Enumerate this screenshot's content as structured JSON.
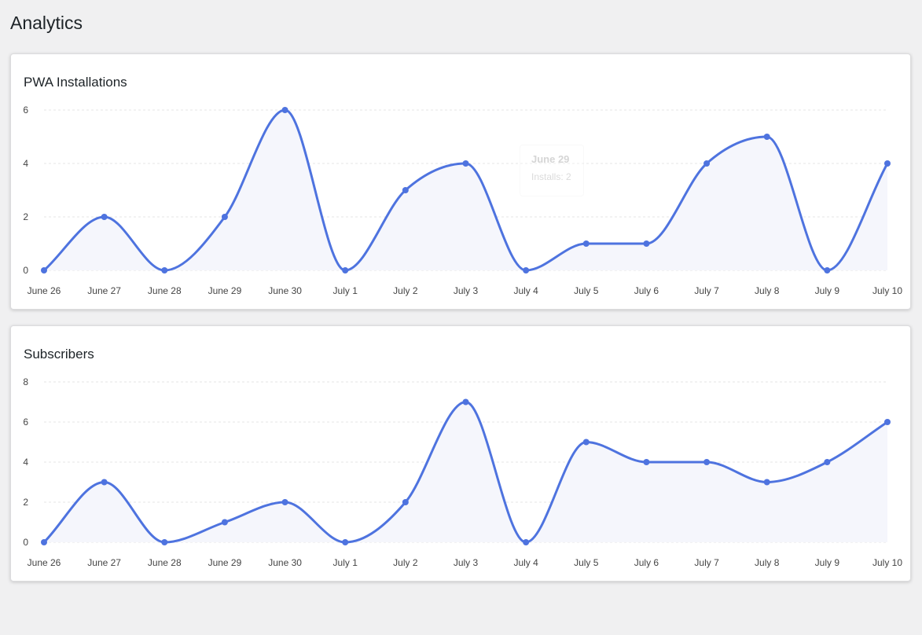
{
  "page": {
    "title": "Analytics"
  },
  "colors": {
    "line": "#4e73df",
    "fill": "#f5f6fc",
    "grid": "#e5e5e5"
  },
  "tooltip": {
    "title": "June 29",
    "body": "Installs: 2"
  },
  "chart_data": [
    {
      "type": "line",
      "title": "PWA Installations",
      "categories": [
        "June 26",
        "June 27",
        "June 28",
        "June 29",
        "June 30",
        "July 1",
        "July 2",
        "July 3",
        "July 4",
        "July 5",
        "July 6",
        "July 7",
        "July 8",
        "July 9",
        "July 10"
      ],
      "series": [
        {
          "values": [
            0,
            2,
            0,
            2,
            6,
            0,
            3,
            4,
            0,
            1,
            1,
            4,
            5,
            0,
            4
          ]
        }
      ],
      "ylim": [
        0,
        6
      ],
      "yticks": [
        0,
        2,
        4,
        6
      ],
      "grid": true,
      "legend": "none"
    },
    {
      "type": "line",
      "title": "Subscribers",
      "categories": [
        "June 26",
        "June 27",
        "June 28",
        "June 29",
        "June 30",
        "July 1",
        "July 2",
        "July 3",
        "July 4",
        "July 5",
        "July 6",
        "July 7",
        "July 8",
        "July 9",
        "July 10"
      ],
      "series": [
        {
          "values": [
            0,
            3,
            0,
            1,
            2,
            0,
            2,
            7,
            0,
            5,
            4,
            4,
            3,
            4,
            6
          ]
        }
      ],
      "ylim": [
        0,
        8
      ],
      "yticks": [
        0,
        2,
        4,
        6,
        8
      ],
      "grid": true,
      "legend": "none"
    }
  ]
}
